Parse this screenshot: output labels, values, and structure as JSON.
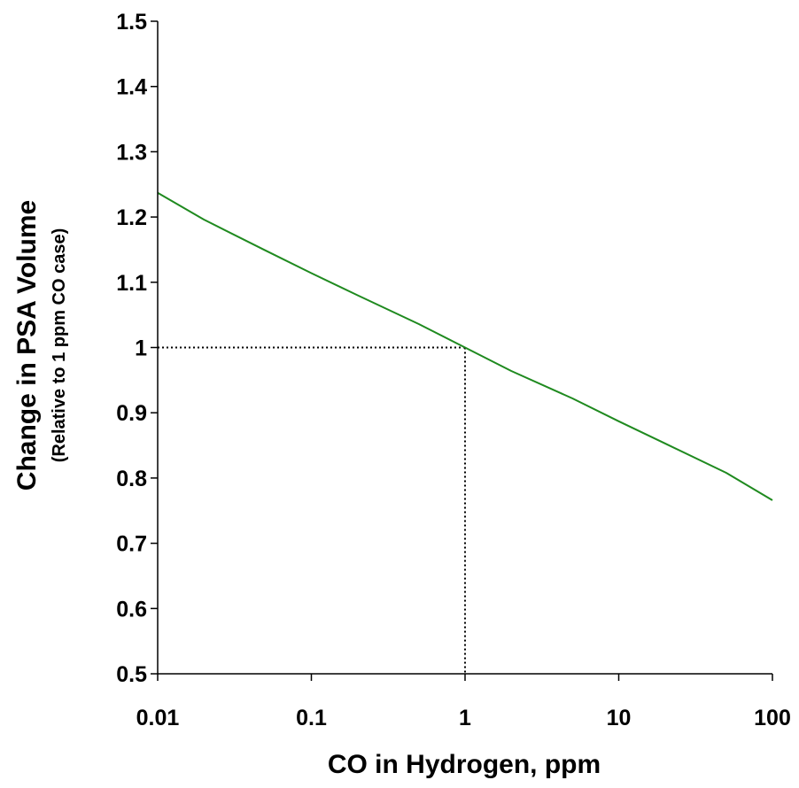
{
  "chart_data": {
    "type": "line",
    "xlabel": "CO in Hydrogen, ppm",
    "ylabel": "Change in PSA Volume",
    "ylabel_sub": "(Relative to 1 ppm CO case)",
    "x_scale": "log",
    "xlim": [
      0.01,
      100
    ],
    "ylim": [
      0.5,
      1.5
    ],
    "x_ticks": [
      0.01,
      0.1,
      1,
      10,
      100
    ],
    "x_tick_labels": [
      "0.01",
      "0.1",
      "1",
      "10",
      "100"
    ],
    "y_ticks": [
      0.5,
      0.6,
      0.7,
      0.8,
      0.9,
      1.0,
      1.1,
      1.2,
      1.3,
      1.4,
      1.5
    ],
    "y_tick_labels": [
      "0.5",
      "0.6",
      "0.7",
      "0.8",
      "0.9",
      "1",
      "1.1",
      "1.2",
      "1.3",
      "1.4",
      "1.5"
    ],
    "grid": false,
    "series": [
      {
        "color": "#1f8a1f",
        "x": [
          0.01,
          0.02,
          0.05,
          0.1,
          0.2,
          0.5,
          1,
          2,
          5,
          10,
          20,
          50,
          100
        ],
        "y": [
          1.237,
          1.196,
          1.149,
          1.114,
          1.08,
          1.036,
          1.0,
          0.964,
          0.922,
          0.887,
          0.853,
          0.808,
          0.766
        ]
      }
    ],
    "reference_lines": {
      "x": 1,
      "y": 1,
      "style": "dotted",
      "color": "#000000"
    }
  }
}
